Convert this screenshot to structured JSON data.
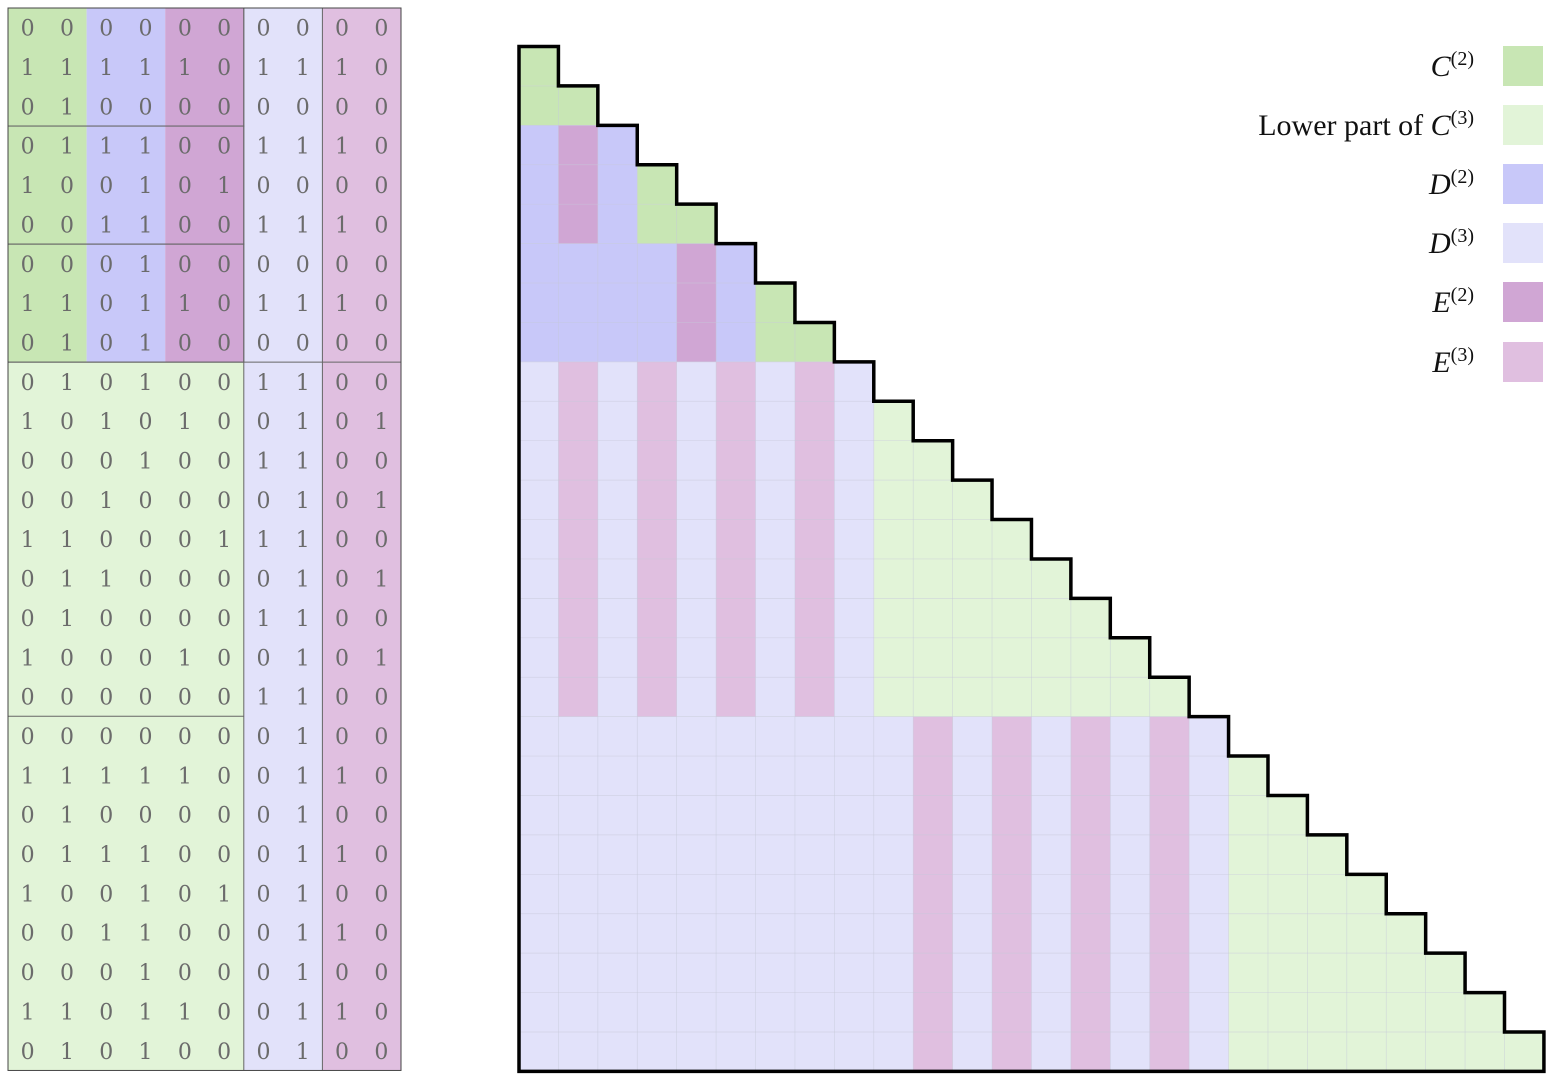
{
  "colors": {
    "C2": "#c8e6b4",
    "C3": "#e2f4d8",
    "D2": "#c8c8f9",
    "D3": "#e2e2fa",
    "E2": "#d0a6d4",
    "E3": "#e0bfe0"
  },
  "legend": [
    {
      "prefix": "",
      "symbol": "C",
      "sup": "(2)",
      "color_key": "C2"
    },
    {
      "prefix": "Lower part of ",
      "symbol": "C",
      "sup": "(3)",
      "color_key": "C3"
    },
    {
      "prefix": "",
      "symbol": "D",
      "sup": "(2)",
      "color_key": "D2"
    },
    {
      "prefix": "",
      "symbol": "D",
      "sup": "(3)",
      "color_key": "D3"
    },
    {
      "prefix": "",
      "symbol": "E",
      "sup": "(2)",
      "color_key": "E2"
    },
    {
      "prefix": "",
      "symbol": "E",
      "sup": "(3)",
      "color_key": "E3"
    }
  ],
  "matrix": [
    [
      0,
      0,
      0,
      0,
      0,
      0,
      0,
      0,
      0,
      0
    ],
    [
      1,
      1,
      1,
      1,
      1,
      0,
      1,
      1,
      1,
      0
    ],
    [
      0,
      1,
      0,
      0,
      0,
      0,
      0,
      0,
      0,
      0
    ],
    [
      0,
      1,
      1,
      1,
      0,
      0,
      1,
      1,
      1,
      0
    ],
    [
      1,
      0,
      0,
      1,
      0,
      1,
      0,
      0,
      0,
      0
    ],
    [
      0,
      0,
      1,
      1,
      0,
      0,
      1,
      1,
      1,
      0
    ],
    [
      0,
      0,
      0,
      1,
      0,
      0,
      0,
      0,
      0,
      0
    ],
    [
      1,
      1,
      0,
      1,
      1,
      0,
      1,
      1,
      1,
      0
    ],
    [
      0,
      1,
      0,
      1,
      0,
      0,
      0,
      0,
      0,
      0
    ],
    [
      0,
      1,
      0,
      1,
      0,
      0,
      1,
      1,
      0,
      0
    ],
    [
      1,
      0,
      1,
      0,
      1,
      0,
      0,
      1,
      0,
      1
    ],
    [
      0,
      0,
      0,
      1,
      0,
      0,
      1,
      1,
      0,
      0
    ],
    [
      0,
      0,
      1,
      0,
      0,
      0,
      0,
      1,
      0,
      1
    ],
    [
      1,
      1,
      0,
      0,
      0,
      1,
      1,
      1,
      0,
      0
    ],
    [
      0,
      1,
      1,
      0,
      0,
      0,
      0,
      1,
      0,
      1
    ],
    [
      0,
      1,
      0,
      0,
      0,
      0,
      1,
      1,
      0,
      0
    ],
    [
      1,
      0,
      0,
      0,
      1,
      0,
      0,
      1,
      0,
      1
    ],
    [
      0,
      0,
      0,
      0,
      0,
      0,
      1,
      1,
      0,
      0
    ],
    [
      0,
      0,
      0,
      0,
      0,
      0,
      0,
      1,
      0,
      0
    ],
    [
      1,
      1,
      1,
      1,
      1,
      0,
      0,
      1,
      1,
      0
    ],
    [
      0,
      1,
      0,
      0,
      0,
      0,
      0,
      1,
      0,
      0
    ],
    [
      0,
      1,
      1,
      1,
      0,
      0,
      0,
      1,
      1,
      0
    ],
    [
      1,
      0,
      0,
      1,
      0,
      1,
      0,
      1,
      0,
      0
    ],
    [
      0,
      0,
      1,
      1,
      0,
      0,
      0,
      1,
      1,
      0
    ],
    [
      0,
      0,
      0,
      1,
      0,
      0,
      0,
      1,
      0,
      0
    ],
    [
      1,
      1,
      0,
      1,
      1,
      0,
      0,
      1,
      1,
      0
    ],
    [
      0,
      1,
      0,
      1,
      0,
      0,
      0,
      1,
      0,
      0
    ]
  ],
  "matrix_regions": [
    {
      "rows": [
        0,
        9
      ],
      "cols": [
        0,
        2
      ],
      "color_key": "C2"
    },
    {
      "rows": [
        0,
        9
      ],
      "cols": [
        2,
        4
      ],
      "color_key": "D2"
    },
    {
      "rows": [
        0,
        3
      ],
      "cols": [
        4,
        6
      ],
      "color_key": "E2"
    },
    {
      "rows": [
        3,
        6
      ],
      "cols": [
        4,
        6
      ],
      "color_key": "E2"
    },
    {
      "rows": [
        6,
        9
      ],
      "cols": [
        4,
        6
      ],
      "color_key": "E2"
    },
    {
      "rows": [
        0,
        9
      ],
      "cols": [
        6,
        8
      ],
      "color_key": "D3"
    },
    {
      "rows": [
        0,
        9
      ],
      "cols": [
        8,
        10
      ],
      "color_key": "E3"
    },
    {
      "rows": [
        9,
        27
      ],
      "cols": [
        0,
        6
      ],
      "color_key": "C3"
    },
    {
      "rows": [
        9,
        27
      ],
      "cols": [
        6,
        8
      ],
      "color_key": "D3"
    },
    {
      "rows": [
        9,
        27
      ],
      "cols": [
        8,
        10
      ],
      "color_key": "E3"
    }
  ],
  "matrix_separators": [
    3,
    6,
    9,
    18
  ],
  "triangle_regions": [
    {
      "rows": [
        0,
        1
      ],
      "cols": [
        0,
        1
      ],
      "color_key": "C2"
    },
    {
      "rows": [
        1,
        2
      ],
      "cols": [
        0,
        2
      ],
      "color_key": "C2"
    },
    {
      "rows": [
        2,
        5
      ],
      "cols": [
        0,
        3
      ],
      "color_key": "D2"
    },
    {
      "rows": [
        2,
        5
      ],
      "cols": [
        1,
        2
      ],
      "color_key": "E2"
    },
    {
      "rows": [
        3,
        4
      ],
      "cols": [
        3,
        4
      ],
      "color_key": "C2"
    },
    {
      "rows": [
        4,
        5
      ],
      "cols": [
        3,
        5
      ],
      "color_key": "C2"
    },
    {
      "rows": [
        5,
        8
      ],
      "cols": [
        0,
        6
      ],
      "color_key": "D2"
    },
    {
      "rows": [
        5,
        8
      ],
      "cols": [
        4,
        5
      ],
      "color_key": "E2"
    },
    {
      "rows": [
        6,
        7
      ],
      "cols": [
        6,
        7
      ],
      "color_key": "C2"
    },
    {
      "rows": [
        7,
        8
      ],
      "cols": [
        6,
        8
      ],
      "color_key": "C2"
    },
    {
      "rows": [
        8,
        17
      ],
      "cols": [
        0,
        9
      ],
      "color_key": "D3"
    },
    {
      "rows": [
        8,
        17
      ],
      "cols": [
        1,
        2
      ],
      "color_key": "E3"
    },
    {
      "rows": [
        8,
        17
      ],
      "cols": [
        3,
        4
      ],
      "color_key": "E3"
    },
    {
      "rows": [
        8,
        17
      ],
      "cols": [
        5,
        6
      ],
      "color_key": "E3"
    },
    {
      "rows": [
        8,
        17
      ],
      "cols": [
        7,
        8
      ],
      "color_key": "E3"
    },
    {
      "rows": [
        17,
        26
      ],
      "cols": [
        0,
        18
      ],
      "color_key": "D3"
    },
    {
      "rows": [
        17,
        26
      ],
      "cols": [
        10,
        11
      ],
      "color_key": "E3"
    },
    {
      "rows": [
        17,
        26
      ],
      "cols": [
        12,
        13
      ],
      "color_key": "E3"
    },
    {
      "rows": [
        17,
        26
      ],
      "cols": [
        14,
        15
      ],
      "color_key": "E3"
    },
    {
      "rows": [
        17,
        26
      ],
      "cols": [
        16,
        17
      ],
      "color_key": "E3"
    }
  ],
  "triangle_c3_blocks": [
    {
      "rows": [
        8,
        17
      ],
      "start_col": 9
    },
    {
      "rows": [
        17,
        26
      ],
      "start_col": 18
    }
  ],
  "triangle_size": 26
}
